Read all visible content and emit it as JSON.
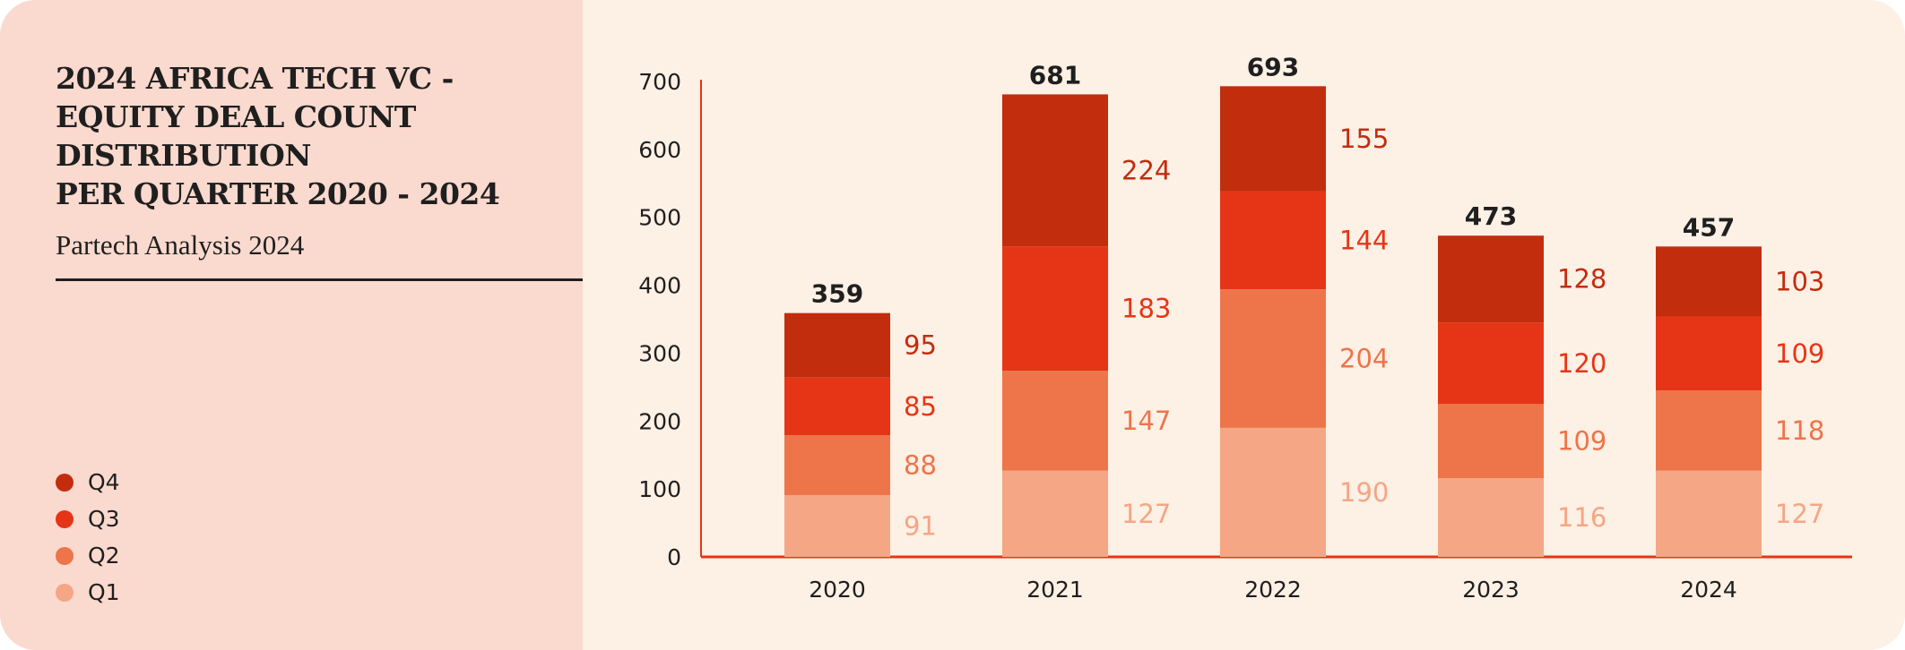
{
  "header": {
    "title": "2024 AFRICA TECH VC -\nEQUITY DEAL COUNT\nDISTRIBUTION\nPER QUARTER 2020 - 2024",
    "subtitle": "Partech Analysis 2024"
  },
  "chart_data": {
    "type": "bar",
    "stacked": true,
    "title": "2024 AFRICA TECH VC - EQUITY DEAL COUNT DISTRIBUTION PER QUARTER 2020 - 2024",
    "subtitle": "Partech Analysis 2024",
    "categories": [
      "2020",
      "2021",
      "2022",
      "2023",
      "2024"
    ],
    "series": [
      {
        "name": "Q1",
        "color": "#f4a685",
        "values": [
          91,
          127,
          190,
          116,
          127
        ]
      },
      {
        "name": "Q2",
        "color": "#ee744a",
        "values": [
          88,
          147,
          204,
          109,
          118
        ]
      },
      {
        "name": "Q3",
        "color": "#e63516",
        "values": [
          85,
          183,
          144,
          120,
          109
        ]
      },
      {
        "name": "Q4",
        "color": "#c22d0e",
        "values": [
          95,
          224,
          155,
          128,
          103
        ]
      }
    ],
    "totals": [
      359,
      681,
      693,
      473,
      457
    ],
    "ylim": [
      0,
      700
    ],
    "yticks": [
      "0",
      "100",
      "200",
      "300",
      "400",
      "500",
      "600",
      "700"
    ],
    "grid": false,
    "legend": "bottom-left",
    "legend_order": [
      "Q4",
      "Q3",
      "Q2",
      "Q1"
    ],
    "axis_color": "#e63516"
  }
}
